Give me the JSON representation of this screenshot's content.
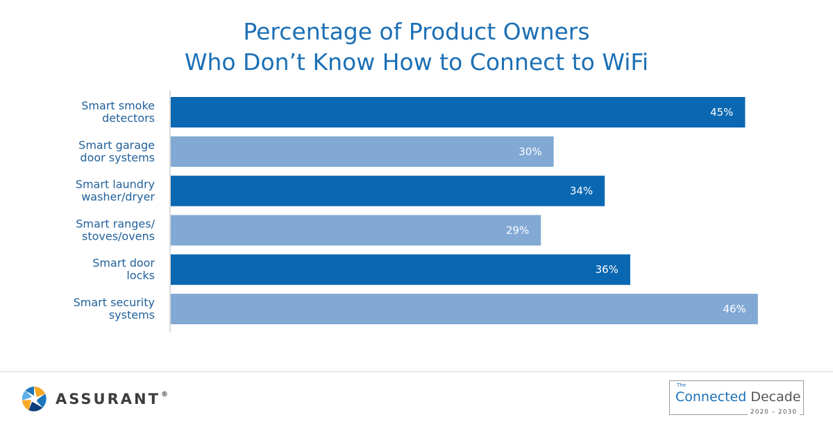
{
  "title": {
    "line1": "Percentage of Product Owners",
    "line2": "Who Don’t Know How to Connect to WiFi"
  },
  "chart_data": {
    "type": "bar",
    "orientation": "horizontal",
    "categories": [
      [
        "Smart smoke",
        "detectors"
      ],
      [
        "Smart garage",
        "door systems"
      ],
      [
        "Smart laundry",
        "washer/dryer"
      ],
      [
        "Smart ranges/",
        "stoves/ovens"
      ],
      [
        "Smart door",
        "locks"
      ],
      [
        "Smart security",
        "systems"
      ]
    ],
    "values": [
      45,
      30,
      34,
      29,
      36,
      46
    ],
    "value_labels": [
      "45%",
      "30%",
      "34%",
      "29%",
      "36%",
      "46%"
    ],
    "bar_colors": [
      "#0a67b1",
      "#82a9d4",
      "#0a67b1",
      "#82a9d4",
      "#0a67b1",
      "#82a9d4"
    ],
    "xlim": [
      0,
      46.5
    ],
    "grid": false,
    "legend": "none"
  },
  "footer": {
    "brand": "ASSURANT",
    "brand_reg": "®",
    "badge_the": "The",
    "badge_connected": "Connected",
    "badge_decade": "Decade",
    "badge_years": "2020 – 2030"
  },
  "colors": {
    "title": "#1b6fb5",
    "label": "#1f5f9a",
    "bar_dark": "#0a67b1",
    "bar_light": "#82a9d4"
  },
  "icons": {
    "logo": "assurant-pinwheel-icon"
  }
}
